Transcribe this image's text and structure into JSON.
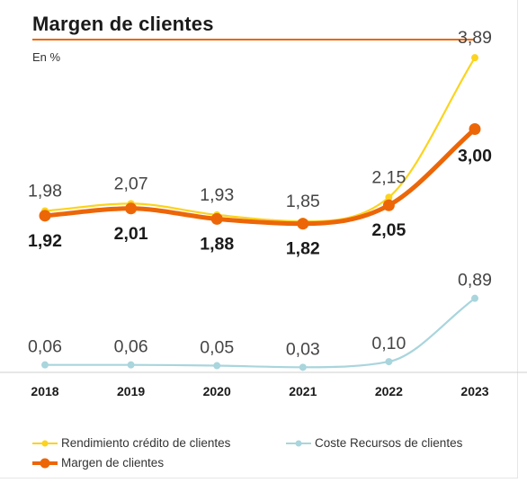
{
  "header": {
    "title": "Margen de clientes",
    "subtitle": "En %"
  },
  "colors": {
    "rendimiento": "#fcd31e",
    "coste": "#a9d5dd",
    "margen": "#ec6608",
    "axis": "#cfcfcf",
    "label": "#444444",
    "bold_label": "#1a1a1a"
  },
  "chart_data": {
    "type": "line",
    "title": "Margen de clientes",
    "subtitle": "En %",
    "categories": [
      "2018",
      "2019",
      "2020",
      "2021",
      "2022",
      "2023"
    ],
    "ylim": [
      0,
      4.5
    ],
    "grid": false,
    "legend_position": "bottom",
    "series": [
      {
        "name": "Rendimiento crédito de clientes",
        "color": "#fcd31e",
        "values": [
          1.98,
          2.07,
          1.93,
          1.85,
          2.15,
          3.89
        ],
        "labels": [
          "1,98",
          "2,07",
          "1,93",
          "1,85",
          "2,15",
          "3,89"
        ]
      },
      {
        "name": "Coste Recursos de clientes",
        "color": "#a9d5dd",
        "values": [
          0.06,
          0.06,
          0.05,
          0.03,
          0.1,
          0.89
        ],
        "labels": [
          "0,06",
          "0,06",
          "0,05",
          "0,03",
          "0,10",
          "0,89"
        ]
      },
      {
        "name": "Margen de clientes",
        "color": "#ec6608",
        "values": [
          1.92,
          2.01,
          1.88,
          1.82,
          2.05,
          3.0
        ],
        "labels": [
          "1,92",
          "2,01",
          "1,88",
          "1,82",
          "2,05",
          "3,00"
        ]
      }
    ]
  }
}
